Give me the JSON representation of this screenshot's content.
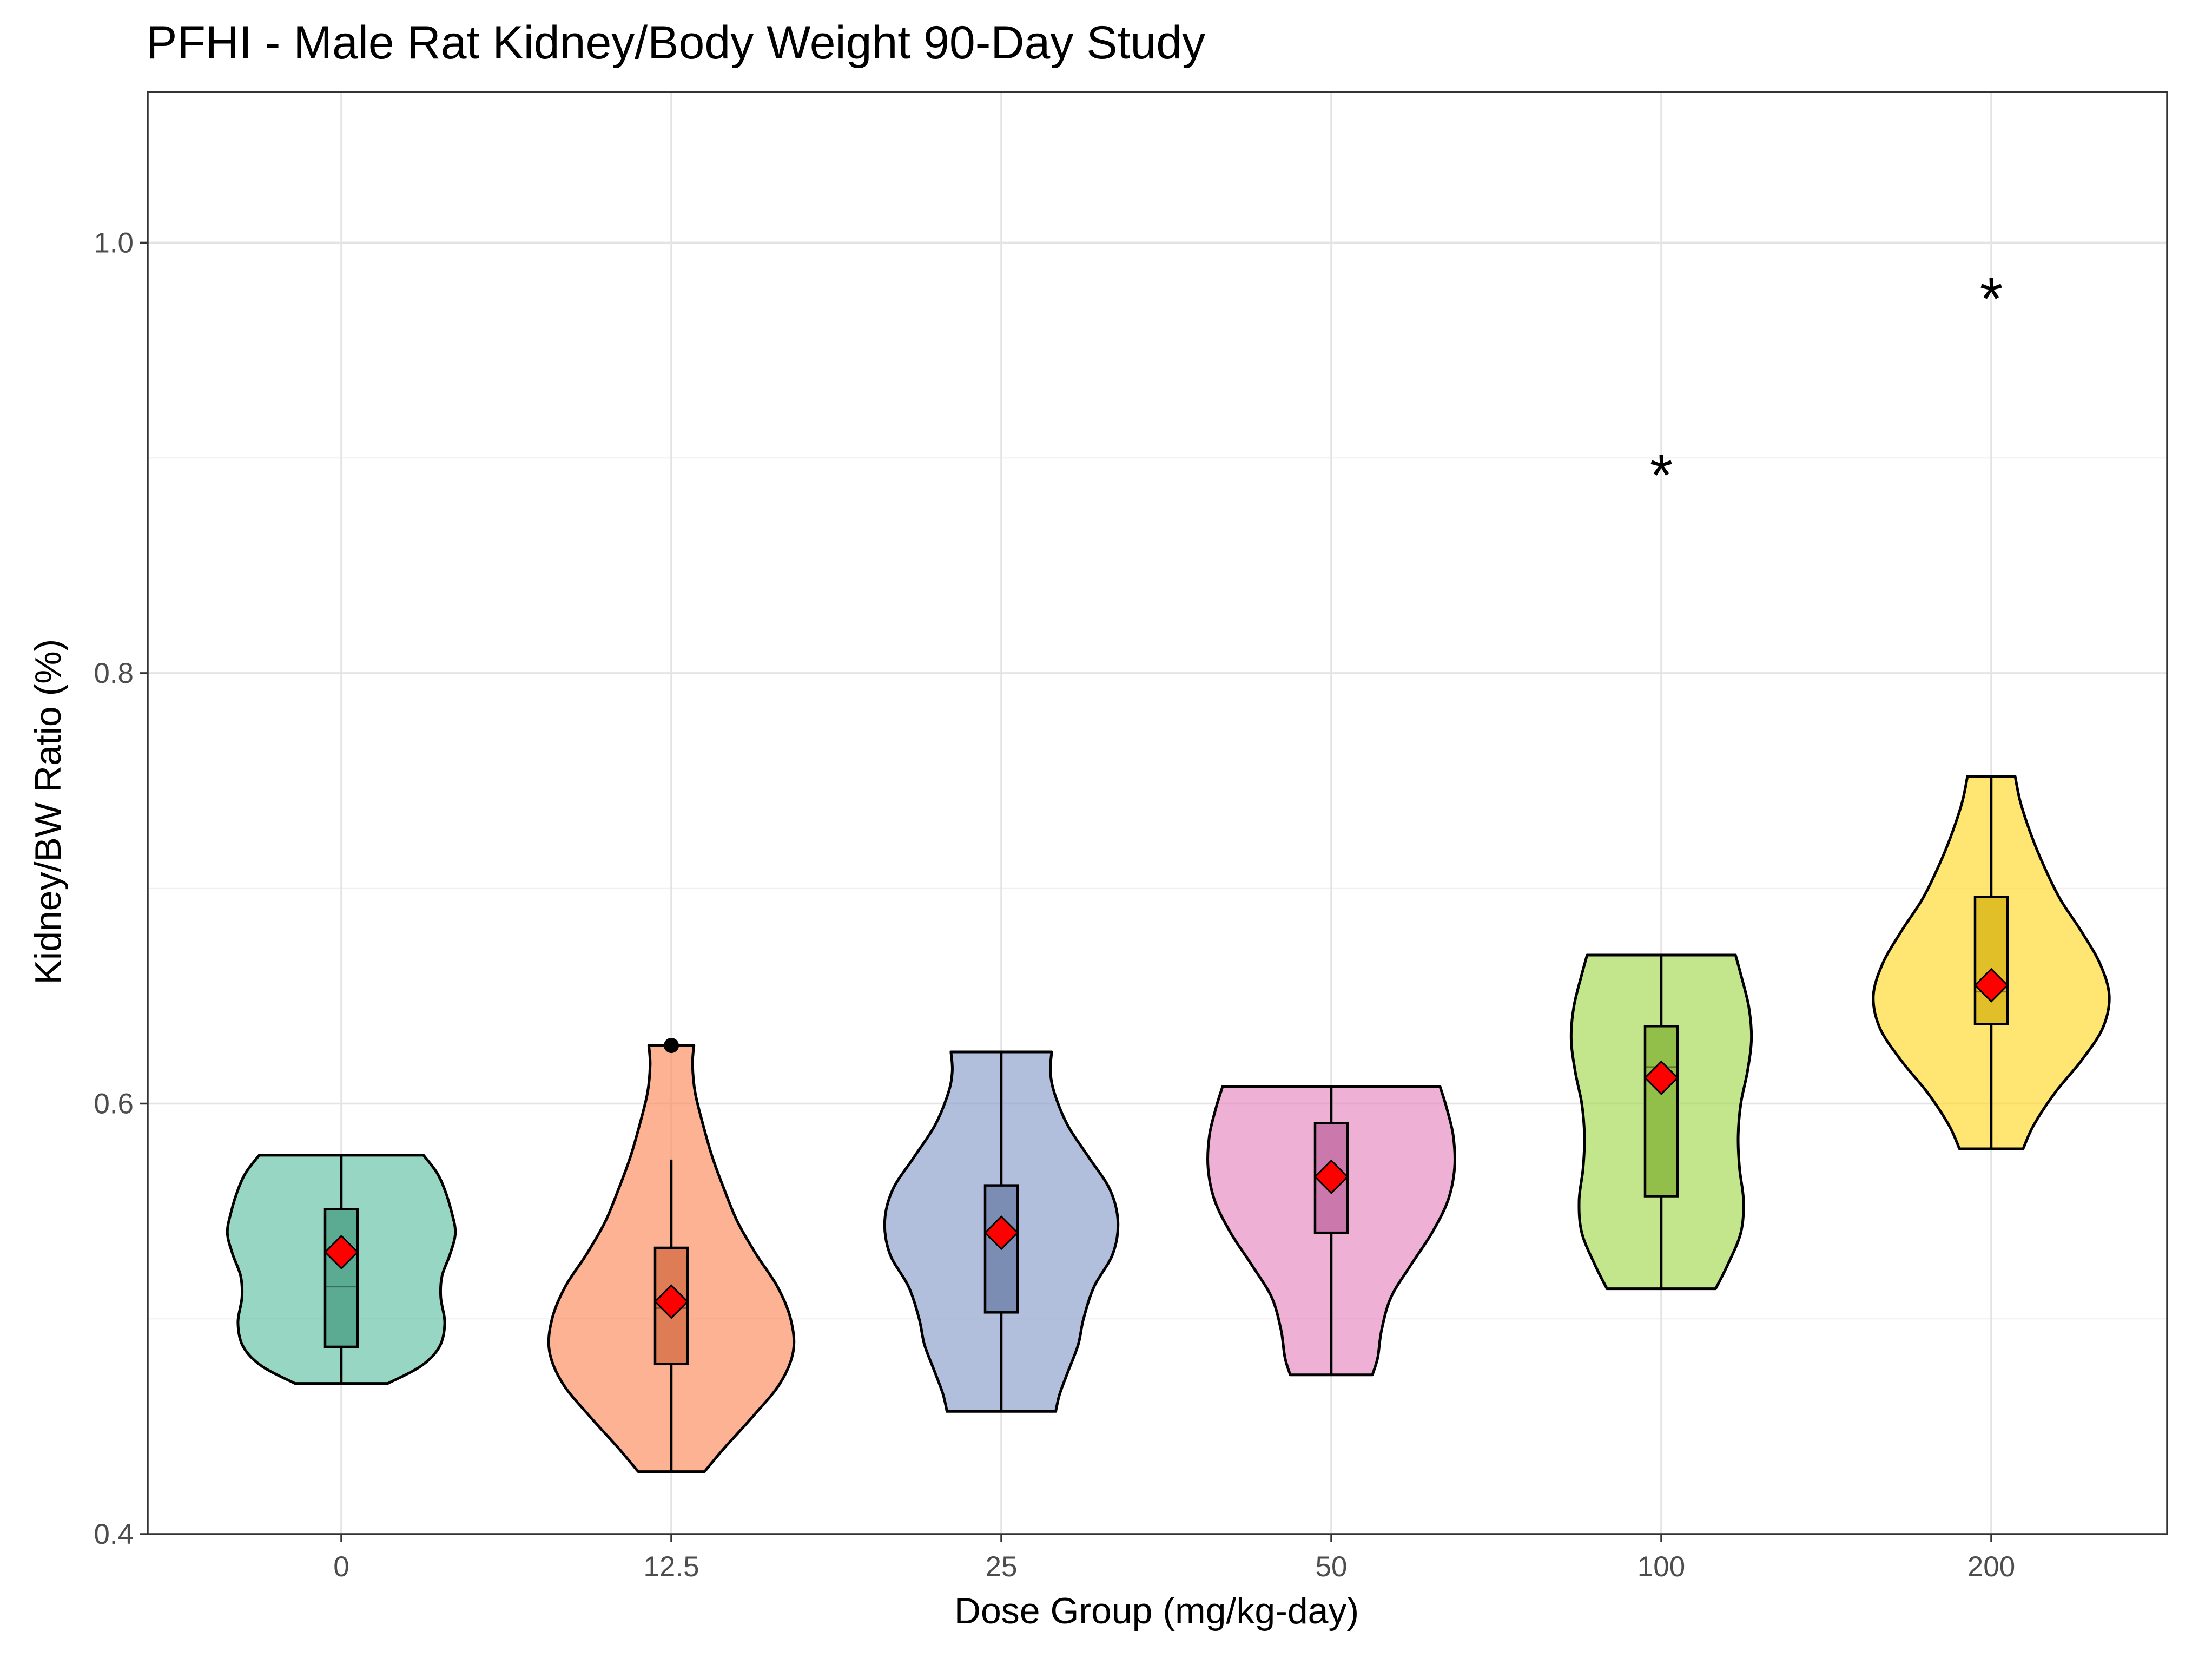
{
  "chart_data": {
    "type": "violin",
    "title": "PFHI - Male Rat Kidney/Body Weight 90-Day Study",
    "xlabel": "Dose Group (mg/kg-day)",
    "ylabel": "Kidney/BW Ratio (%)",
    "ylim": [
      0.4,
      1.07
    ],
    "yticks": [
      0.4,
      0.6,
      0.8,
      1.0
    ],
    "ytick_labels": [
      "0.4",
      "0.6",
      "0.8",
      "1.0"
    ],
    "grid": true,
    "categories": [
      "0",
      "12.5",
      "25",
      "50",
      "100",
      "200"
    ],
    "groups": [
      {
        "dose": "0",
        "color": "#66c2a5",
        "min": 0.47,
        "q1": 0.487,
        "median": 0.515,
        "q3": 0.551,
        "max": 0.576,
        "whisker_low": 0.47,
        "whisker_high": 0.576,
        "mean": 0.531,
        "outliers": [],
        "significant": false,
        "density": [
          [
            0.47,
            0.35
          ],
          [
            0.478,
            0.6
          ],
          [
            0.487,
            0.74
          ],
          [
            0.498,
            0.78
          ],
          [
            0.51,
            0.75
          ],
          [
            0.52,
            0.76
          ],
          [
            0.53,
            0.82
          ],
          [
            0.54,
            0.86
          ],
          [
            0.55,
            0.83
          ],
          [
            0.56,
            0.78
          ],
          [
            0.568,
            0.72
          ],
          [
            0.576,
            0.62
          ]
        ]
      },
      {
        "dose": "12.5",
        "color": "#fc8d62",
        "min": 0.429,
        "q1": 0.479,
        "median": 0.505,
        "q3": 0.533,
        "max": 0.627,
        "whisker_low": 0.429,
        "whisker_high": 0.574,
        "mean": 0.508,
        "outliers": [
          0.627
        ],
        "significant": false,
        "density": [
          [
            0.429,
            0.25
          ],
          [
            0.44,
            0.4
          ],
          [
            0.455,
            0.62
          ],
          [
            0.47,
            0.82
          ],
          [
            0.485,
            0.92
          ],
          [
            0.5,
            0.9
          ],
          [
            0.515,
            0.8
          ],
          [
            0.53,
            0.64
          ],
          [
            0.545,
            0.5
          ],
          [
            0.56,
            0.4
          ],
          [
            0.575,
            0.31
          ],
          [
            0.59,
            0.24
          ],
          [
            0.605,
            0.18
          ],
          [
            0.618,
            0.16
          ],
          [
            0.627,
            0.17
          ]
        ]
      },
      {
        "dose": "25",
        "color": "#8da0cb",
        "min": 0.457,
        "q1": 0.503,
        "median": 0.54,
        "q3": 0.562,
        "max": 0.624,
        "whisker_low": 0.457,
        "whisker_high": 0.624,
        "mean": 0.54,
        "outliers": [],
        "significant": false,
        "density": [
          [
            0.457,
            0.41
          ],
          [
            0.465,
            0.44
          ],
          [
            0.475,
            0.5
          ],
          [
            0.488,
            0.58
          ],
          [
            0.5,
            0.62
          ],
          [
            0.515,
            0.7
          ],
          [
            0.53,
            0.84
          ],
          [
            0.545,
            0.88
          ],
          [
            0.56,
            0.82
          ],
          [
            0.575,
            0.66
          ],
          [
            0.59,
            0.5
          ],
          [
            0.605,
            0.4
          ],
          [
            0.615,
            0.37
          ],
          [
            0.624,
            0.38
          ]
        ]
      },
      {
        "dose": "50",
        "color": "#e78ac3",
        "min": 0.474,
        "q1": 0.54,
        "median": 0.567,
        "q3": 0.591,
        "max": 0.608,
        "whisker_low": 0.474,
        "whisker_high": 0.608,
        "mean": 0.566,
        "outliers": [],
        "significant": false,
        "density": [
          [
            0.474,
            0.31
          ],
          [
            0.482,
            0.35
          ],
          [
            0.495,
            0.38
          ],
          [
            0.51,
            0.45
          ],
          [
            0.525,
            0.6
          ],
          [
            0.54,
            0.76
          ],
          [
            0.555,
            0.88
          ],
          [
            0.57,
            0.93
          ],
          [
            0.585,
            0.92
          ],
          [
            0.598,
            0.87
          ],
          [
            0.608,
            0.82
          ]
        ]
      },
      {
        "dose": "100",
        "color": "#a6d854",
        "min": 0.514,
        "q1": 0.557,
        "median": 0.617,
        "q3": 0.636,
        "max": 0.669,
        "whisker_low": 0.514,
        "whisker_high": 0.669,
        "mean": 0.612,
        "outliers": [],
        "significant": true,
        "density": [
          [
            0.514,
            0.41
          ],
          [
            0.525,
            0.5
          ],
          [
            0.54,
            0.6
          ],
          [
            0.555,
            0.62
          ],
          [
            0.57,
            0.59
          ],
          [
            0.585,
            0.58
          ],
          [
            0.6,
            0.6
          ],
          [
            0.615,
            0.65
          ],
          [
            0.63,
            0.68
          ],
          [
            0.645,
            0.66
          ],
          [
            0.66,
            0.6
          ],
          [
            0.669,
            0.56
          ]
        ]
      },
      {
        "dose": "200",
        "color": "#ffd92f",
        "min": 0.579,
        "q1": 0.637,
        "median": 0.652,
        "q3": 0.696,
        "max": 0.752,
        "whisker_low": 0.579,
        "whisker_high": 0.752,
        "mean": 0.655,
        "outliers": [],
        "significant": true,
        "density": [
          [
            0.579,
            0.24
          ],
          [
            0.59,
            0.32
          ],
          [
            0.605,
            0.48
          ],
          [
            0.62,
            0.68
          ],
          [
            0.635,
            0.84
          ],
          [
            0.65,
            0.89
          ],
          [
            0.665,
            0.82
          ],
          [
            0.68,
            0.68
          ],
          [
            0.695,
            0.52
          ],
          [
            0.71,
            0.4
          ],
          [
            0.725,
            0.3
          ],
          [
            0.74,
            0.22
          ],
          [
            0.752,
            0.18
          ]
        ]
      }
    ],
    "annotations": [
      {
        "dose": "100",
        "text": "*",
        "y": 0.895
      },
      {
        "dose": "200",
        "text": "*",
        "y": 0.977
      }
    ]
  }
}
